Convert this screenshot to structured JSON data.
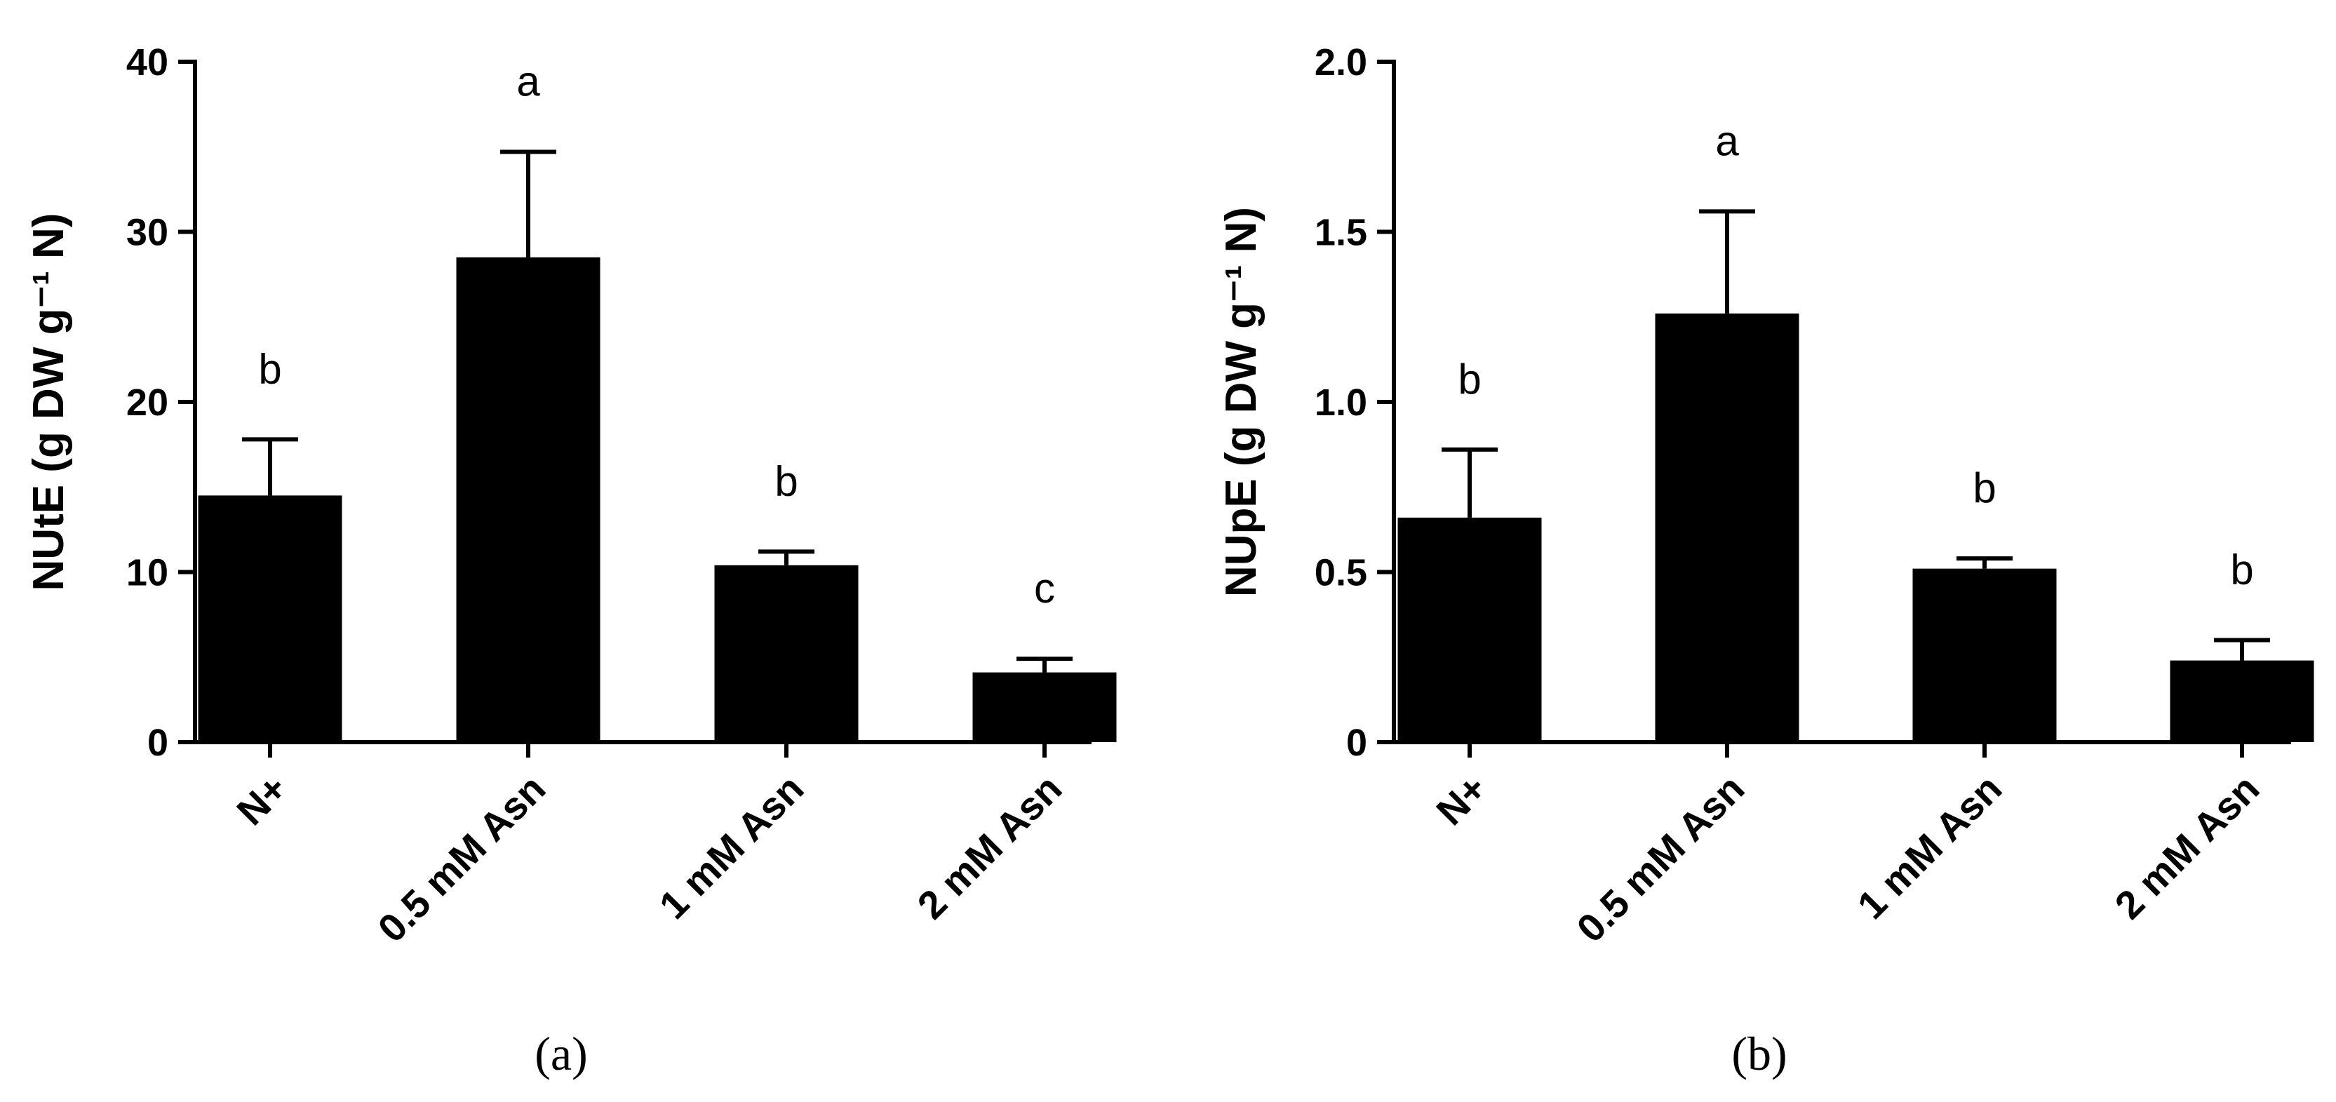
{
  "chart_data": [
    {
      "type": "bar",
      "panel_label": "(a)",
      "ylabel": "NUtE (g DW g⁻¹ N)",
      "categories": [
        "N+",
        "0.5 mM Asn",
        "1 mM Asn",
        "2 mM Asn"
      ],
      "values": [
        14.5,
        28.5,
        10.4,
        4.1
      ],
      "error": [
        3.3,
        6.2,
        0.8,
        0.8
      ],
      "significance_letters": [
        "b",
        "a",
        "b",
        "c"
      ],
      "ylim": [
        0,
        40
      ],
      "yticks": [
        0,
        10,
        20,
        30,
        40
      ],
      "ytick_labels": [
        "0",
        "10",
        "20",
        "30",
        "40"
      ],
      "bar_color": "#000000",
      "grid": false
    },
    {
      "type": "bar",
      "panel_label": "(b)",
      "ylabel": "NUpE (g DW g⁻¹ N)",
      "categories": [
        "N+",
        "0.5 mM Asn",
        "1 mM Asn",
        "2 mM Asn"
      ],
      "values": [
        0.66,
        1.26,
        0.51,
        0.24
      ],
      "error": [
        0.2,
        0.3,
        0.03,
        0.06
      ],
      "significance_letters": [
        "b",
        "a",
        "b",
        "b"
      ],
      "ylim": [
        0,
        2.0
      ],
      "yticks": [
        0,
        0.5,
        1.0,
        1.5,
        2.0
      ],
      "ytick_labels": [
        "0",
        "0.5",
        "1.0",
        "1.5",
        "2.0"
      ],
      "bar_color": "#000000",
      "grid": false
    }
  ]
}
